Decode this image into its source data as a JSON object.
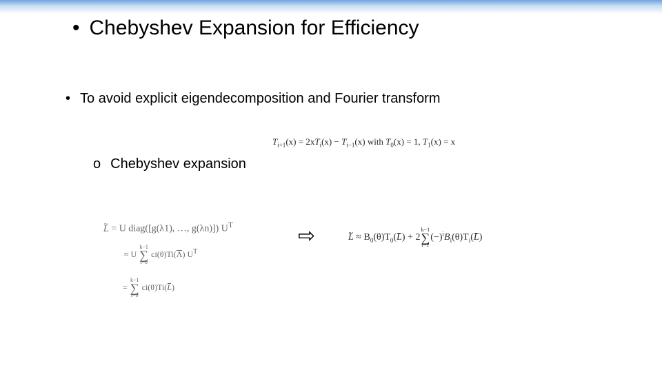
{
  "colors": {
    "gradient_top": "#6fa3e0",
    "gradient_mid": "#c4dbf3",
    "gradient_bottom": "#ffffff",
    "background": "#ffffff",
    "text": "#000000",
    "eq_faded": "#666666",
    "eq_strong": "#2a2a2a"
  },
  "typography": {
    "body_font": "Arial, Helvetica, sans-serif",
    "math_font": "Times New Roman, serif",
    "title_fontsize": 30,
    "body_fontsize": 20,
    "sub_fontsize": 20,
    "recurrence_fontsize": 13,
    "eq_fontsize": 14
  },
  "title": {
    "bullet": "•",
    "text": "Chebyshev Expansion for Efficiency"
  },
  "body_point": {
    "bullet": "•",
    "text": "To avoid explicit eigendecomposition and Fourier transform"
  },
  "sub_point": {
    "bullet": "o",
    "text": "Chebyshev expansion"
  },
  "recurrence": {
    "lhs": "T",
    "lhs_sub": "i+1",
    "var": "(x)",
    "eq": " = ",
    "term1_pre": "2x",
    "term1_T": "T",
    "term1_sub": "i",
    "term1_post": "(x) − ",
    "term2_T": "T",
    "term2_sub": "i−1",
    "term2_post": "(x)",
    "with": " with ",
    "t0": "T",
    "t0_sub": "0",
    "t0_post": "(x) = 1, ",
    "t1": "T",
    "t1_sub": "1",
    "t1_post": "(x) = x"
  },
  "eq_left": {
    "line1_L": "L",
    "line1_rest": " = U diag([g(λ",
    "line1_sub1": "1",
    "line1_mid": "), …, g(λ",
    "line1_subn": "n",
    "line1_end": ")]) U",
    "line1_T": "T",
    "approx": "≈ U ",
    "sum_top": "k−1",
    "sum_bot": "i=0",
    "approx_mid": " c",
    "approx_sub": "i",
    "approx_theta": "(θ)T",
    "approx_isub": "i",
    "approx_arg_L": "Λ",
    "approx_end": ") U",
    "approx_T": "T",
    "eq2_pre": "= ",
    "eq2_sum_top": "k−1",
    "eq2_sum_bot": "i=0",
    "eq2_mid": " c",
    "eq2_sub": "i",
    "eq2_theta": "(θ)T",
    "eq2_isub": "i",
    "eq2_arg_L": "L",
    "eq2_end": ")"
  },
  "arrow": "⇨",
  "eq_right": {
    "L": "L",
    "approx": " ≈ B",
    "b0_sub": "0",
    "b0_post": "(θ)T",
    "t0_sub": "0",
    "t0_arg_L": "L",
    "t0_post": ") + 2",
    "sum_top": "k−1",
    "sum_bot": "i=1",
    "neg": "(−)",
    "neg_sup": "i",
    "bi": "B",
    "bi_sub": "i",
    "bi_post": "(θ)T",
    "ti_sub": "i",
    "ti_arg_L": "L",
    "ti_post": ")"
  }
}
